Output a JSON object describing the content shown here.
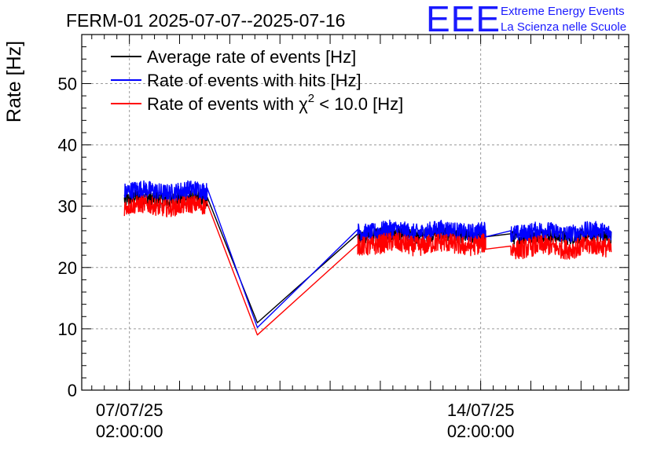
{
  "chart_data": {
    "type": "line",
    "title": "FERM-01 2025-07-07--2025-07-16",
    "ylabel": "Rate [Hz]",
    "xlabel": "",
    "ylim": [
      0,
      58
    ],
    "x_range_days": [
      -0.95,
      9.95
    ],
    "x_ticks": [
      {
        "day": 0,
        "line1": "07/07/25",
        "line2": "02:00:00"
      },
      {
        "day": 7,
        "line1": "14/07/25",
        "line2": "02:00:00"
      }
    ],
    "y_ticks": [
      0,
      10,
      20,
      30,
      40,
      50
    ],
    "grid": true,
    "legend_position": "top-left",
    "logo": {
      "text": "EEE",
      "line1": "Extreme Energy Events",
      "line2": "La Scienza nelle Scuole"
    },
    "series": [
      {
        "name": "Average rate of events [Hz]",
        "color": "#000000",
        "segments": [
          {
            "from": -0.1,
            "to": 1.55,
            "mean": 31.2,
            "noise": 0.8
          },
          {
            "from": 1.55,
            "to": 2.55,
            "start": 31.5,
            "end": 11.0
          },
          {
            "from": 2.55,
            "to": 4.55,
            "start": 11.0,
            "end": 25.5
          },
          {
            "from": 4.55,
            "to": 7.1,
            "mean": 25.3,
            "noise": 0.7
          },
          {
            "from": 7.1,
            "to": 7.6,
            "start": 25.0,
            "end": 25.5
          },
          {
            "from": 7.6,
            "to": 9.6,
            "mean": 25.1,
            "noise": 0.7
          }
        ]
      },
      {
        "name": "Rate of events with hits [Hz]",
        "color": "#0000ff",
        "segments": [
          {
            "from": -0.1,
            "to": 1.55,
            "mean": 32.5,
            "noise": 0.9
          },
          {
            "from": 1.55,
            "to": 2.55,
            "start": 33.0,
            "end": 10.2
          },
          {
            "from": 2.55,
            "to": 4.55,
            "start": 10.2,
            "end": 26.2
          },
          {
            "from": 4.55,
            "to": 7.1,
            "mean": 26.0,
            "noise": 0.9
          },
          {
            "from": 7.1,
            "to": 7.6,
            "start": 25.0,
            "end": 26.0
          },
          {
            "from": 7.6,
            "to": 9.6,
            "mean": 25.8,
            "noise": 0.9
          }
        ]
      },
      {
        "name": "Rate of events with χ² < 10.0 [Hz]",
        "name_parts": {
          "prefix": "Rate of events with ",
          "chi": "χ",
          "sup": "2",
          "suffix": " < 10.0 [Hz]"
        },
        "color": "#ff0000",
        "segments": [
          {
            "from": -0.1,
            "to": 1.55,
            "mean": 30.0,
            "noise": 0.9
          },
          {
            "from": 1.55,
            "to": 2.55,
            "start": 30.5,
            "end": 9.0
          },
          {
            "from": 2.55,
            "to": 4.55,
            "start": 9.0,
            "end": 23.8
          },
          {
            "from": 4.55,
            "to": 7.1,
            "mean": 23.8,
            "noise": 1.0
          },
          {
            "from": 7.1,
            "to": 7.6,
            "start": 23.0,
            "end": 23.5
          },
          {
            "from": 7.6,
            "to": 9.6,
            "mean": 23.3,
            "noise": 1.0
          }
        ]
      }
    ]
  }
}
